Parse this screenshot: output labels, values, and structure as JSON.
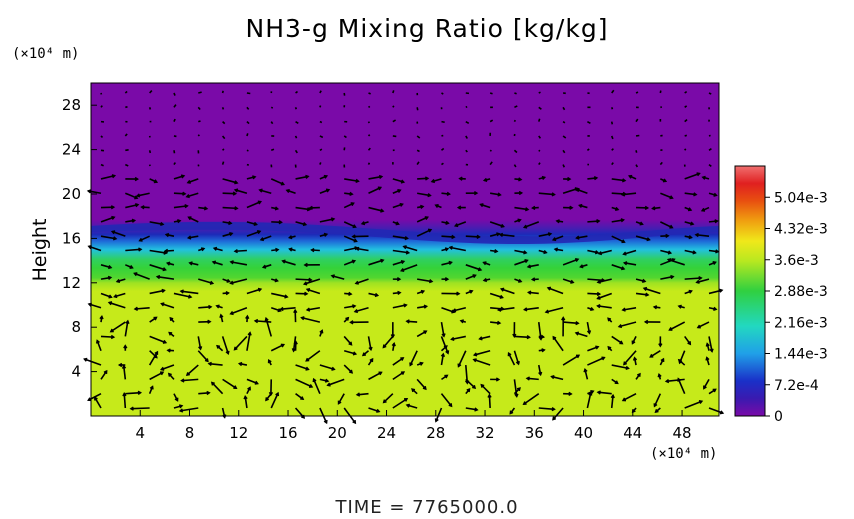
{
  "chart_data": {
    "type": "heatmap",
    "title": "NH3-g Mixing Ratio [kg/kg]",
    "ylabel": "Height",
    "y_unit": "(×10⁴ m)",
    "x_unit": "(×10⁴ m)",
    "x_ticks": [
      "4",
      "8",
      "12",
      "16",
      "20",
      "24",
      "28",
      "32",
      "36",
      "40",
      "44",
      "48"
    ],
    "x_tick_values": [
      4,
      8,
      12,
      16,
      20,
      24,
      28,
      32,
      36,
      40,
      44,
      48
    ],
    "y_ticks": [
      "4",
      "8",
      "12",
      "16",
      "20",
      "24",
      "28"
    ],
    "y_tick_values": [
      4,
      8,
      12,
      16,
      20,
      24,
      28
    ],
    "xlim": [
      0,
      51
    ],
    "ylim": [
      0,
      30
    ],
    "colorbar": {
      "labels": [
        "0",
        "7.2e-4",
        "1.44e-3",
        "2.16e-3",
        "2.88e-3",
        "3.6e-3",
        "4.32e-3",
        "5.04e-3"
      ],
      "values": [
        0,
        0.00072,
        0.00144,
        0.00216,
        0.00288,
        0.0036,
        0.00432,
        0.00504
      ],
      "max": 0.00576
    },
    "fields": [
      {
        "region": "upper layer",
        "y_range": [
          17,
          30
        ],
        "value": 0
      },
      {
        "region": "transition band",
        "y_range": [
          15.5,
          17
        ],
        "value": 0.0007
      },
      {
        "region": "green band",
        "y_range": [
          12.5,
          16.5
        ],
        "value": 0.0029
      },
      {
        "region": "lower layer",
        "y_range": [
          0,
          12.5
        ],
        "value": 0.0038
      }
    ],
    "overlay": "wind vectors",
    "grid": false
  },
  "footer": {
    "time_label": "TIME  =  7765000.0"
  },
  "colors": {
    "upper": "#7a0aa8",
    "transition": "#2a30b8",
    "green": "#30d040",
    "lower": "#c6ea1a",
    "arrows": "#000000"
  }
}
